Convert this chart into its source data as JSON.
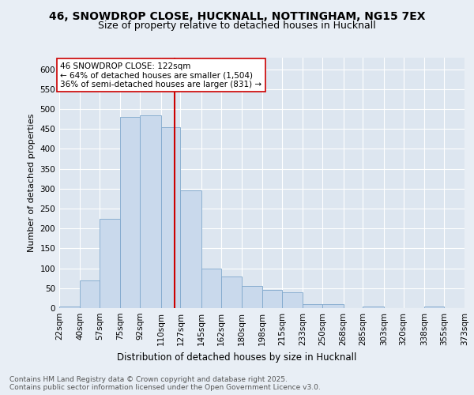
{
  "title1": "46, SNOWDROP CLOSE, HUCKNALL, NOTTINGHAM, NG15 7EX",
  "title2": "Size of property relative to detached houses in Hucknall",
  "xlabel": "Distribution of detached houses by size in Hucknall",
  "ylabel": "Number of detached properties",
  "bar_edges": [
    22,
    40,
    57,
    75,
    92,
    110,
    127,
    145,
    162,
    180,
    198,
    215,
    233,
    250,
    268,
    285,
    303,
    320,
    338,
    355,
    373
  ],
  "bar_heights": [
    4,
    70,
    225,
    480,
    485,
    455,
    295,
    100,
    80,
    55,
    45,
    40,
    10,
    10,
    0,
    4,
    0,
    0,
    4,
    0
  ],
  "bar_color": "#c9d9ec",
  "bar_edge_color": "#7fa8cc",
  "property_line_x": 122,
  "property_line_color": "#cc0000",
  "annotation_text": "46 SNOWDROP CLOSE: 122sqm\n← 64% of detached houses are smaller (1,504)\n36% of semi-detached houses are larger (831) →",
  "annotation_box_color": "#ffffff",
  "annotation_box_edge": "#cc0000",
  "tick_labels": [
    "22sqm",
    "40sqm",
    "57sqm",
    "75sqm",
    "92sqm",
    "110sqm",
    "127sqm",
    "145sqm",
    "162sqm",
    "180sqm",
    "198sqm",
    "215sqm",
    "233sqm",
    "250sqm",
    "268sqm",
    "285sqm",
    "303sqm",
    "320sqm",
    "338sqm",
    "355sqm",
    "373sqm"
  ],
  "ylim": [
    0,
    630
  ],
  "yticks": [
    0,
    50,
    100,
    150,
    200,
    250,
    300,
    350,
    400,
    450,
    500,
    550,
    600
  ],
  "background_color": "#e8eef5",
  "plot_bg_color": "#dde6f0",
  "grid_color": "#ffffff",
  "footer_text": "Contains HM Land Registry data © Crown copyright and database right 2025.\nContains public sector information licensed under the Open Government Licence v3.0.",
  "title1_fontsize": 10,
  "title2_fontsize": 9,
  "xlabel_fontsize": 8.5,
  "ylabel_fontsize": 8,
  "tick_fontsize": 7.5,
  "annotation_fontsize": 7.5,
  "footer_fontsize": 6.5
}
